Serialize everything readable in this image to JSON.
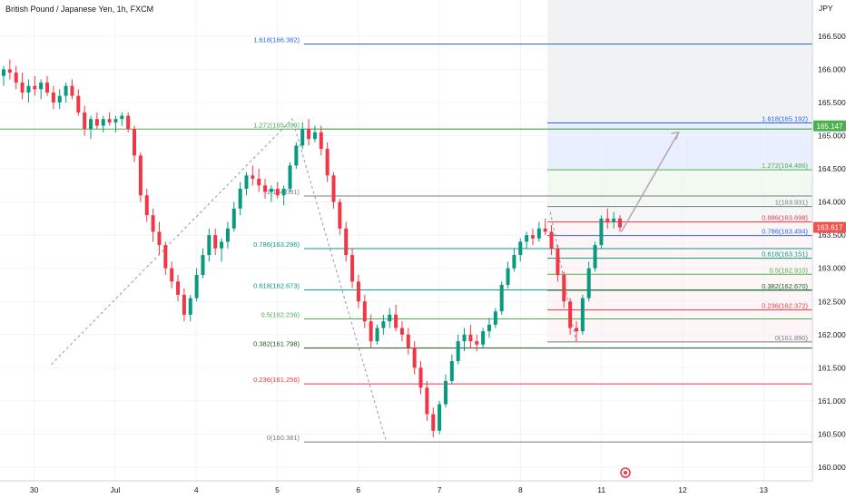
{
  "title": "British Pound / Japanese Yen, 1h, FXCM",
  "chart_data": {
    "type": "candlestick",
    "y_unit": "JPY",
    "ylim": [
      159.9,
      166.9
    ],
    "y_ticks": [
      160.0,
      160.5,
      161.0,
      161.5,
      162.0,
      162.5,
      163.0,
      163.5,
      164.0,
      164.5,
      165.0,
      165.5,
      166.0,
      166.5
    ],
    "x_ticks": [
      {
        "label": "30",
        "t": 8
      },
      {
        "label": "Jul",
        "t": 27
      },
      {
        "label": "4",
        "t": 46
      },
      {
        "label": "5",
        "t": 65
      },
      {
        "label": "6",
        "t": 84
      },
      {
        "label": "7",
        "t": 103
      },
      {
        "label": "8",
        "t": 122
      },
      {
        "label": "11",
        "t": 141
      },
      {
        "label": "12",
        "t": 160
      },
      {
        "label": "13",
        "t": 179
      }
    ],
    "price_tags": [
      {
        "value": 165.147,
        "label": "165.147",
        "color": "#4caf50"
      },
      {
        "value": 163.617,
        "label": "163.617",
        "color": "#ef5350"
      }
    ],
    "fib_left": [
      {
        "label": "1.618(166.382)",
        "value": 166.382,
        "color": "#2962ff"
      },
      {
        "label": "1.272(165.099)",
        "value": 165.099,
        "color": "#4caf50"
      },
      {
        "label": "1(164.091)",
        "value": 164.091,
        "color": "#787b86"
      },
      {
        "label": "0.786(163.296)",
        "value": 163.296,
        "color": "#089981"
      },
      {
        "label": "0.618(162.673)",
        "value": 162.673,
        "color": "#089981"
      },
      {
        "label": "0.5(162.236)",
        "value": 162.236,
        "color": "#4caf50"
      },
      {
        "label": "0.382(161.798)",
        "value": 161.798,
        "color": "#1b5e20"
      },
      {
        "label": "0.236(161.256)",
        "value": 161.256,
        "color": "#f23645"
      },
      {
        "label": "0(160.381)",
        "value": 160.381,
        "color": "#787b86"
      }
    ],
    "fib_right": [
      {
        "label": "1.618(165.192)",
        "value": 165.192,
        "color": "#2962ff"
      },
      {
        "label": "1.272(164.486)",
        "value": 164.486,
        "color": "#4caf50"
      },
      {
        "label": "1(163.931)",
        "value": 163.931,
        "color": "#787b86"
      },
      {
        "label": "0.886(163.698)",
        "value": 163.698,
        "color": "#f23645"
      },
      {
        "label": "0.786(163.494)",
        "value": 163.494,
        "color": "#2962ff"
      },
      {
        "label": "0.618(163.151)",
        "value": 163.151,
        "color": "#089981"
      },
      {
        "label": "0.5(162.910)",
        "value": 162.91,
        "color": "#4caf50"
      },
      {
        "label": "0.382(162.670)",
        "value": 162.67,
        "color": "#1b5e20"
      },
      {
        "label": "0.236(162.372)",
        "value": 162.372,
        "color": "#f23645"
      },
      {
        "label": "0(161.890)",
        "value": 161.89,
        "color": "#787b86"
      }
    ],
    "path_points": [
      [
        12,
        161.55
      ],
      [
        68.5,
        165.25
      ],
      [
        90.5,
        160.39
      ]
    ],
    "forecast_arrow": [
      [
        135,
        163.55
      ],
      [
        148,
        165.05
      ]
    ],
    "candles": [
      [
        165.9,
        166.05,
        165.75,
        166.0
      ],
      [
        166.0,
        166.15,
        165.85,
        165.95
      ],
      [
        165.95,
        166.05,
        165.7,
        165.8
      ],
      [
        165.8,
        165.95,
        165.55,
        165.65
      ],
      [
        165.65,
        165.85,
        165.5,
        165.75
      ],
      [
        165.75,
        165.9,
        165.6,
        165.7
      ],
      [
        165.7,
        165.85,
        165.55,
        165.8
      ],
      [
        165.8,
        165.9,
        165.6,
        165.65
      ],
      [
        165.65,
        165.75,
        165.4,
        165.5
      ],
      [
        165.5,
        165.7,
        165.4,
        165.6
      ],
      [
        165.6,
        165.8,
        165.5,
        165.75
      ],
      [
        165.75,
        165.85,
        165.55,
        165.6
      ],
      [
        165.6,
        165.7,
        165.3,
        165.35
      ],
      [
        165.35,
        165.45,
        165.0,
        165.1
      ],
      [
        165.1,
        165.3,
        164.95,
        165.25
      ],
      [
        165.25,
        165.35,
        165.1,
        165.15
      ],
      [
        165.15,
        165.3,
        165.05,
        165.25
      ],
      [
        165.25,
        165.35,
        165.15,
        165.2
      ],
      [
        165.2,
        165.3,
        165.05,
        165.25
      ],
      [
        165.25,
        165.35,
        165.15,
        165.3
      ],
      [
        165.3,
        165.35,
        165.05,
        165.1
      ],
      [
        165.1,
        165.15,
        164.6,
        164.7
      ],
      [
        164.7,
        164.75,
        164.0,
        164.1
      ],
      [
        164.1,
        164.2,
        163.7,
        163.8
      ],
      [
        163.8,
        163.9,
        163.4,
        163.55
      ],
      [
        163.55,
        163.7,
        163.2,
        163.35
      ],
      [
        163.35,
        163.4,
        162.9,
        163.0
      ],
      [
        163.0,
        163.1,
        162.7,
        162.8
      ],
      [
        162.8,
        162.9,
        162.5,
        162.6
      ],
      [
        162.6,
        162.7,
        162.2,
        162.3
      ],
      [
        162.3,
        162.6,
        162.2,
        162.55
      ],
      [
        162.55,
        163.0,
        162.5,
        162.9
      ],
      [
        162.9,
        163.3,
        162.85,
        163.2
      ],
      [
        163.2,
        163.6,
        163.1,
        163.5
      ],
      [
        163.5,
        163.6,
        163.2,
        163.3
      ],
      [
        163.3,
        163.45,
        163.1,
        163.4
      ],
      [
        163.4,
        163.7,
        163.3,
        163.6
      ],
      [
        163.6,
        164.0,
        163.55,
        163.9
      ],
      [
        163.9,
        164.3,
        163.8,
        164.2
      ],
      [
        164.2,
        164.45,
        164.1,
        164.4
      ],
      [
        164.4,
        164.55,
        164.25,
        164.35
      ],
      [
        164.35,
        164.5,
        164.15,
        164.25
      ],
      [
        164.25,
        164.35,
        164.05,
        164.15
      ],
      [
        164.15,
        164.25,
        164.0,
        164.2
      ],
      [
        164.2,
        164.3,
        164.05,
        164.1
      ],
      [
        164.1,
        164.25,
        163.95,
        164.2
      ],
      [
        164.2,
        164.6,
        164.15,
        164.55
      ],
      [
        164.55,
        164.9,
        164.5,
        164.85
      ],
      [
        164.85,
        165.2,
        164.8,
        165.1
      ],
      [
        165.1,
        165.25,
        164.85,
        164.95
      ],
      [
        164.95,
        165.15,
        164.9,
        165.05
      ],
      [
        165.05,
        165.15,
        164.7,
        164.8
      ],
      [
        164.8,
        164.9,
        164.3,
        164.4
      ],
      [
        164.4,
        164.45,
        163.9,
        164.0
      ],
      [
        164.0,
        164.05,
        163.5,
        163.6
      ],
      [
        163.6,
        163.7,
        163.1,
        163.2
      ],
      [
        163.2,
        163.3,
        162.7,
        162.8
      ],
      [
        162.8,
        162.9,
        162.4,
        162.5
      ],
      [
        162.5,
        162.6,
        162.1,
        162.2
      ],
      [
        162.2,
        162.3,
        161.8,
        161.9
      ],
      [
        161.9,
        162.15,
        161.85,
        162.1
      ],
      [
        162.1,
        162.3,
        162.0,
        162.2
      ],
      [
        162.2,
        162.4,
        162.1,
        162.3
      ],
      [
        162.3,
        162.45,
        162.05,
        162.1
      ],
      [
        162.1,
        162.2,
        161.9,
        162.0
      ],
      [
        162.0,
        162.1,
        161.7,
        161.8
      ],
      [
        161.8,
        161.9,
        161.4,
        161.5
      ],
      [
        161.5,
        161.6,
        161.1,
        161.2
      ],
      [
        161.2,
        161.3,
        160.7,
        160.8
      ],
      [
        160.8,
        160.9,
        160.45,
        160.55
      ],
      [
        160.55,
        161.0,
        160.5,
        160.95
      ],
      [
        160.95,
        161.4,
        160.9,
        161.3
      ],
      [
        161.3,
        161.7,
        161.25,
        161.6
      ],
      [
        161.6,
        162.0,
        161.55,
        161.9
      ],
      [
        161.9,
        162.1,
        161.75,
        162.0
      ],
      [
        162.0,
        162.15,
        161.8,
        161.9
      ],
      [
        161.9,
        162.0,
        161.75,
        161.85
      ],
      [
        161.85,
        162.1,
        161.8,
        162.05
      ],
      [
        162.05,
        162.25,
        161.95,
        162.15
      ],
      [
        162.15,
        162.4,
        162.1,
        162.35
      ],
      [
        162.35,
        162.8,
        162.3,
        162.75
      ],
      [
        162.75,
        163.1,
        162.7,
        163.0
      ],
      [
        163.0,
        163.3,
        162.95,
        163.2
      ],
      [
        163.2,
        163.45,
        163.1,
        163.4
      ],
      [
        163.4,
        163.55,
        163.3,
        163.5
      ],
      [
        163.5,
        163.6,
        163.35,
        163.45
      ],
      [
        163.45,
        163.7,
        163.4,
        163.6
      ],
      [
        163.6,
        163.75,
        163.5,
        163.55
      ],
      [
        163.55,
        163.65,
        163.2,
        163.3
      ],
      [
        163.3,
        163.35,
        162.8,
        162.9
      ],
      [
        162.9,
        162.95,
        162.4,
        162.5
      ],
      [
        162.5,
        162.55,
        162.0,
        162.1
      ],
      [
        162.1,
        162.2,
        161.9,
        162.05
      ],
      [
        162.05,
        162.6,
        162.0,
        162.55
      ],
      [
        162.55,
        163.1,
        162.5,
        163.0
      ],
      [
        163.0,
        163.4,
        162.95,
        163.35
      ],
      [
        163.35,
        163.8,
        163.3,
        163.75
      ],
      [
        163.75,
        163.9,
        163.6,
        163.7
      ],
      [
        163.7,
        163.85,
        163.6,
        163.75
      ],
      [
        163.75,
        163.8,
        163.55,
        163.617
      ]
    ]
  }
}
